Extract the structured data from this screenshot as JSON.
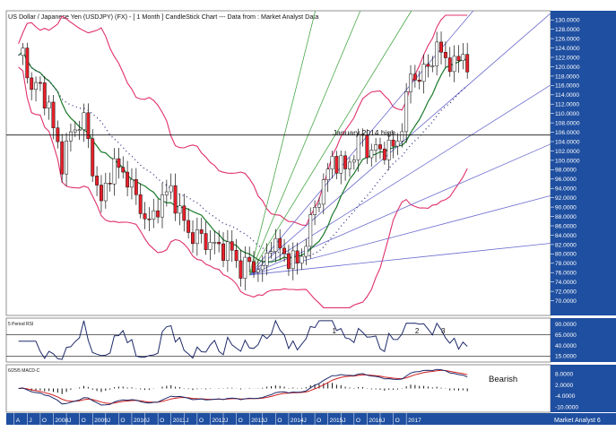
{
  "header": {
    "title": "US Dollar / Japanese Yen (USDJPY) (FX) -  [ 1 Month ] CandleStick Chart --- Data from : Market Analyst Data"
  },
  "annotations": {
    "horizontal_line_label": "January 2014 high",
    "macd_note": "Bearish",
    "rsi_marks": [
      "1",
      "2",
      "3"
    ]
  },
  "colors": {
    "up_candle": "#ffffff",
    "down_candle": "#e8202a",
    "bollinger": "#e0306a",
    "moving_average": "#1a7a2a",
    "fan_lines": "#6a6ad0",
    "rsi_line": "#1f2a6a",
    "macd_line": "#1f2a6a",
    "macd_signal": "#d02020",
    "axis_band": "#1f4fa0"
  },
  "chart_data": [
    {
      "type": "candlestick",
      "panel": "price",
      "title": "US Dollar / Japanese Yen (USDJPY) (FX) -  [ 1 Month ] CandleStick Chart --- Data from : Market Analyst Data",
      "ylim": [
        68,
        131
      ],
      "yticks": [
        "70.0000",
        "72.0000",
        "74.0000",
        "76.0000",
        "78.0000",
        "80.0000",
        "82.0000",
        "84.0000",
        "86.0000",
        "88.0000",
        "90.0000",
        "92.0000",
        "94.0000",
        "96.0000",
        "98.0000",
        "100.0000",
        "102.0000",
        "104.0000",
        "106.0000",
        "108.0000",
        "110.0000",
        "112.0000",
        "114.0000",
        "116.0000",
        "118.0000",
        "120.0000",
        "122.0000",
        "124.0000",
        "126.0000",
        "128.0000",
        "130.0000"
      ],
      "horizontal_line": {
        "value": 105.4,
        "label": "January 2014 high"
      },
      "fan_origin": {
        "x": "2011-10",
        "y": 75.5
      },
      "fan_line_count": 9,
      "overlays": [
        "Bollinger Bands",
        "Moving Average",
        "Dotted Moving Average"
      ],
      "close_path": [
        [
          "2007-05",
          121.0
        ],
        [
          "2007-06",
          123.1
        ],
        [
          "2007-07",
          118.6
        ],
        [
          "2007-08",
          116.0
        ],
        [
          "2007-10",
          115.3
        ],
        [
          "2007-12",
          111.7
        ],
        [
          "2008-01",
          106.4
        ],
        [
          "2008-03",
          99.7
        ],
        [
          "2008-05",
          105.5
        ],
        [
          "2008-07",
          108.1
        ],
        [
          "2008-08",
          108.8
        ],
        [
          "2008-10",
          98.5
        ],
        [
          "2008-12",
          90.6
        ],
        [
          "2009-02",
          97.6
        ],
        [
          "2009-03",
          98.9
        ],
        [
          "2009-06",
          96.4
        ],
        [
          "2009-09",
          89.8
        ],
        [
          "2009-11",
          86.3
        ],
        [
          "2010-01",
          90.3
        ],
        [
          "2010-04",
          94.0
        ],
        [
          "2010-06",
          88.4
        ],
        [
          "2010-09",
          83.5
        ],
        [
          "2010-11",
          83.7
        ],
        [
          "2011-01",
          82.0
        ],
        [
          "2011-04",
          81.2
        ],
        [
          "2011-06",
          80.5
        ],
        [
          "2011-08",
          76.7
        ],
        [
          "2011-10",
          78.0
        ],
        [
          "2012-01",
          76.3
        ],
        [
          "2012-03",
          82.9
        ],
        [
          "2012-06",
          79.8
        ],
        [
          "2012-09",
          77.9
        ],
        [
          "2012-11",
          82.6
        ],
        [
          "2012-12",
          86.7
        ],
        [
          "2013-02",
          92.6
        ],
        [
          "2013-04",
          97.4
        ],
        [
          "2013-05",
          100.5
        ],
        [
          "2013-08",
          98.1
        ],
        [
          "2013-12",
          105.3
        ],
        [
          "2014-01",
          102.0
        ],
        [
          "2014-04",
          102.2
        ],
        [
          "2014-07",
          102.8
        ],
        [
          "2014-08",
          104.1
        ],
        [
          "2014-10",
          112.3
        ],
        [
          "2014-11",
          118.6
        ],
        [
          "2015-01",
          117.5
        ],
        [
          "2015-03",
          120.1
        ],
        [
          "2015-05",
          124.1
        ],
        [
          "2015-06",
          122.5
        ],
        [
          "2015-08",
          121.2
        ],
        [
          "2015-09",
          119.9
        ],
        [
          "2015-11",
          123.1
        ],
        [
          "2015-12",
          120.2
        ]
      ]
    },
    {
      "type": "line",
      "panel": "rsi",
      "label": "5 Period RSI",
      "ylim": [
        5,
        100
      ],
      "yticks": [
        "15.0000",
        "40.0000",
        "65.0000",
        "90.0000"
      ],
      "reference_lines": [
        65,
        15
      ],
      "marks": [
        {
          "label": "1",
          "x": "2013-05"
        },
        {
          "label": "2",
          "x": "2014-12"
        },
        {
          "label": "3",
          "x": "2015-06"
        }
      ]
    },
    {
      "type": "line",
      "panel": "macd",
      "label": "6/25/5 MACD-C",
      "ylim": [
        -12,
        12
      ],
      "yticks": [
        "8.0000",
        "2.0000",
        "-4.0000",
        "-10.0000"
      ],
      "annotation": "Bearish"
    },
    {
      "type": "axis",
      "panel": "time",
      "labels": [
        "A",
        "J",
        "O",
        "2008",
        "J",
        "O",
        "2009",
        "J",
        "O",
        "2010",
        "J",
        "O",
        "2011",
        "J",
        "O",
        "2012",
        "J",
        "O",
        "2013",
        "J",
        "O",
        "2014",
        "J",
        "O",
        "2015",
        "J",
        "O",
        "2016",
        "J",
        "O",
        "2017"
      ],
      "footer": "Market Analyst 6"
    }
  ]
}
